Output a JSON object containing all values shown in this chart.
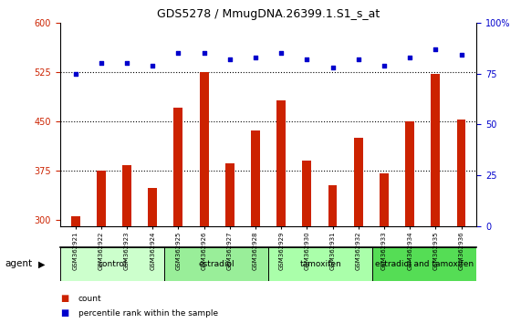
{
  "title": "GDS5278 / MmugDNA.26399.1.S1_s_at",
  "samples": [
    "GSM362921",
    "GSM362922",
    "GSM362923",
    "GSM362924",
    "GSM362925",
    "GSM362926",
    "GSM362927",
    "GSM362928",
    "GSM362929",
    "GSM362930",
    "GSM362931",
    "GSM362932",
    "GSM362933",
    "GSM362934",
    "GSM362935",
    "GSM362936"
  ],
  "counts": [
    305,
    375,
    383,
    348,
    470,
    525,
    385,
    435,
    482,
    390,
    352,
    425,
    370,
    450,
    522,
    452
  ],
  "percentiles": [
    75,
    80,
    80,
    79,
    85,
    85,
    82,
    83,
    85,
    82,
    78,
    82,
    79,
    83,
    87,
    84
  ],
  "groups": [
    {
      "label": "control",
      "start": 0,
      "end": 4,
      "color": "#ccffcc"
    },
    {
      "label": "estradiol",
      "start": 4,
      "end": 8,
      "color": "#99ee99"
    },
    {
      "label": "tamoxifen",
      "start": 8,
      "end": 12,
      "color": "#aaffaa"
    },
    {
      "label": "estradiol and tamoxifen",
      "start": 12,
      "end": 16,
      "color": "#55dd55"
    }
  ],
  "bar_color": "#cc2200",
  "dot_color": "#0000cc",
  "ylim_left": [
    290,
    600
  ],
  "ylim_right": [
    0,
    100
  ],
  "yticks_left": [
    300,
    375,
    450,
    525,
    600
  ],
  "yticks_right": [
    0,
    25,
    50,
    75,
    100
  ],
  "grid_values": [
    375,
    450,
    525
  ],
  "tick_area_color": "#bbbbbb",
  "agent_label": "agent"
}
